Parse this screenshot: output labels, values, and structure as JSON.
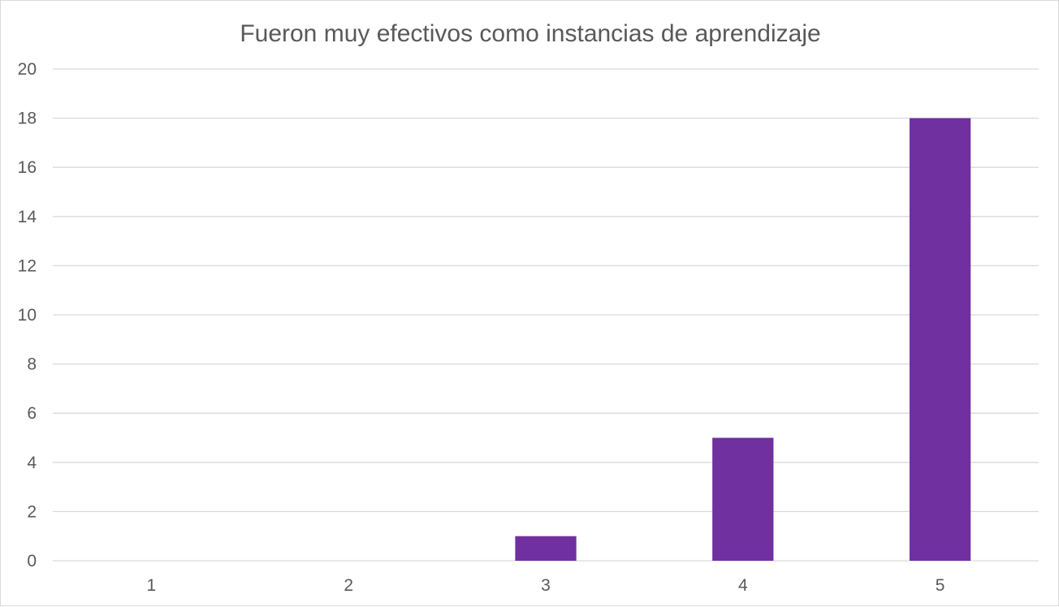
{
  "chart_data": {
    "type": "bar",
    "title": "Fueron muy efectivos como instancias de aprendizaje",
    "categories": [
      "1",
      "2",
      "3",
      "4",
      "5"
    ],
    "values": [
      0,
      0,
      1,
      5,
      18
    ],
    "xlabel": "",
    "ylabel": "",
    "ylim": [
      0,
      20
    ],
    "yticks": [
      "0",
      "2",
      "4",
      "6",
      "8",
      "10",
      "12",
      "14",
      "16",
      "18",
      "20"
    ],
    "grid": true,
    "legend": "none",
    "bar_color": "#7030a0",
    "grid_color": "#d9d9d9"
  }
}
